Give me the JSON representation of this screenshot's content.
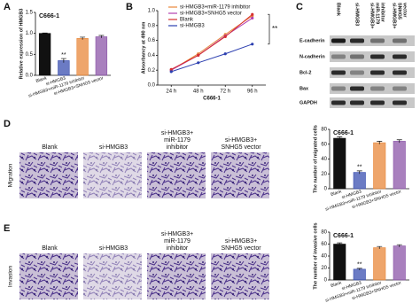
{
  "panel_labels": [
    "A",
    "B",
    "C",
    "D",
    "E"
  ],
  "chart_data": [
    {
      "type": "bar",
      "title": "C666-1",
      "y_label": "Relative expression of HMGB3",
      "categories": [
        "Blank",
        "si-HMGB3",
        "si-HMGB3+miR-1179 inhibitor",
        "si-HMGB3+SNHG5 vector"
      ],
      "values": [
        1,
        0.35,
        0.88,
        0.92
      ],
      "errors": [
        0.01,
        0.05,
        0.03,
        0.03
      ],
      "colors": [
        "#111111",
        "#3a4fb0",
        "#e8873a",
        "#8c55a8"
      ],
      "ylim": [
        0,
        1.5
      ],
      "yticks": [
        {
          "value": 0,
          "label": "0.0"
        },
        0.5,
        {
          "value": 1,
          "label": "1.0"
        },
        1.5
      ],
      "annotation": "**"
    },
    {
      "type": "line",
      "x_label": "C666-1",
      "y_label": "Absorbancy at 490 nm",
      "categories": [
        "24 h",
        "48 h",
        "72 h",
        "96 h"
      ],
      "series": [
        {
          "name": "si-HMGB3+miR-1179 inhibitor",
          "color": "#e8873a",
          "values": [
            0.2,
            0.42,
            0.68,
            0.93
          ]
        },
        {
          "name": "si-HMGB3+SNHG5 vector",
          "color": "#b23fb0",
          "values": [
            0.2,
            0.4,
            0.66,
            0.9
          ]
        },
        {
          "name": "Blank",
          "color": "#d62f2f",
          "values": [
            0.21,
            0.4,
            0.65,
            0.95
          ]
        },
        {
          "name": "si-HMGB3",
          "color": "#2c3fb0",
          "values": [
            0.18,
            0.3,
            0.42,
            0.55
          ]
        }
      ],
      "ylim": [
        0,
        1
      ],
      "yticks": [
        {
          "value": 0,
          "label": "0.0"
        },
        0.2,
        0.4,
        0.6,
        0.8,
        {
          "value": 1,
          "label": "1.0"
        }
      ],
      "annotation": "**"
    },
    {
      "type": "bar",
      "title": "C666-1",
      "y_label": "The number of migrated cells",
      "categories": [
        "Blank",
        "si-HMGB3",
        "si-HMGB3+miR-1179 inhibitor",
        "si-HMGB3+SNHG5 vector"
      ],
      "values": [
        68,
        22,
        62,
        64
      ],
      "errors": [
        2,
        2,
        2,
        2
      ],
      "colors": [
        "#111111",
        "#3a4fb0",
        "#e8873a",
        "#8c55a8"
      ],
      "ylim": [
        0,
        80
      ],
      "yticks": [
        0,
        20,
        40,
        60,
        80
      ],
      "annotation": "**"
    },
    {
      "type": "bar",
      "title": "C666-1",
      "y_label": "The number of invasive cells",
      "categories": [
        "Blank",
        "si-HMGB3",
        "si-HMGB3+miR-1179 inhibitor",
        "si-HMGB3+SNHG5 vector"
      ],
      "values": [
        60,
        18,
        54,
        57
      ],
      "errors": [
        2,
        1.5,
        2,
        2
      ],
      "colors": [
        "#111111",
        "#3a4fb0",
        "#e8873a",
        "#8c55a8"
      ],
      "ylim": [
        0,
        80
      ],
      "yticks": [
        0,
        20,
        40,
        60,
        80
      ],
      "annotation": "**"
    }
  ],
  "blot": {
    "columns": [
      [
        "Blank"
      ],
      [
        "si-HMGB3"
      ],
      [
        "si-HMGB3+",
        "miR-1179",
        "inhibitor"
      ],
      [
        "si-HMGB3+",
        "SNHG5",
        "vector"
      ]
    ],
    "rows": [
      "E-cadherin",
      "N-cadherin",
      "Bcl-2",
      "Bax",
      "GAPDH"
    ]
  },
  "micrographs": {
    "columns": [
      [
        "Blank"
      ],
      [
        "si-HMGB3"
      ],
      [
        "si-HMGB3+",
        "miR-1179",
        "inhibitor"
      ],
      [
        "si-HMGB3+",
        "SNHG5 vector"
      ]
    ],
    "rows": [
      "Migration",
      "Invasion"
    ]
  }
}
